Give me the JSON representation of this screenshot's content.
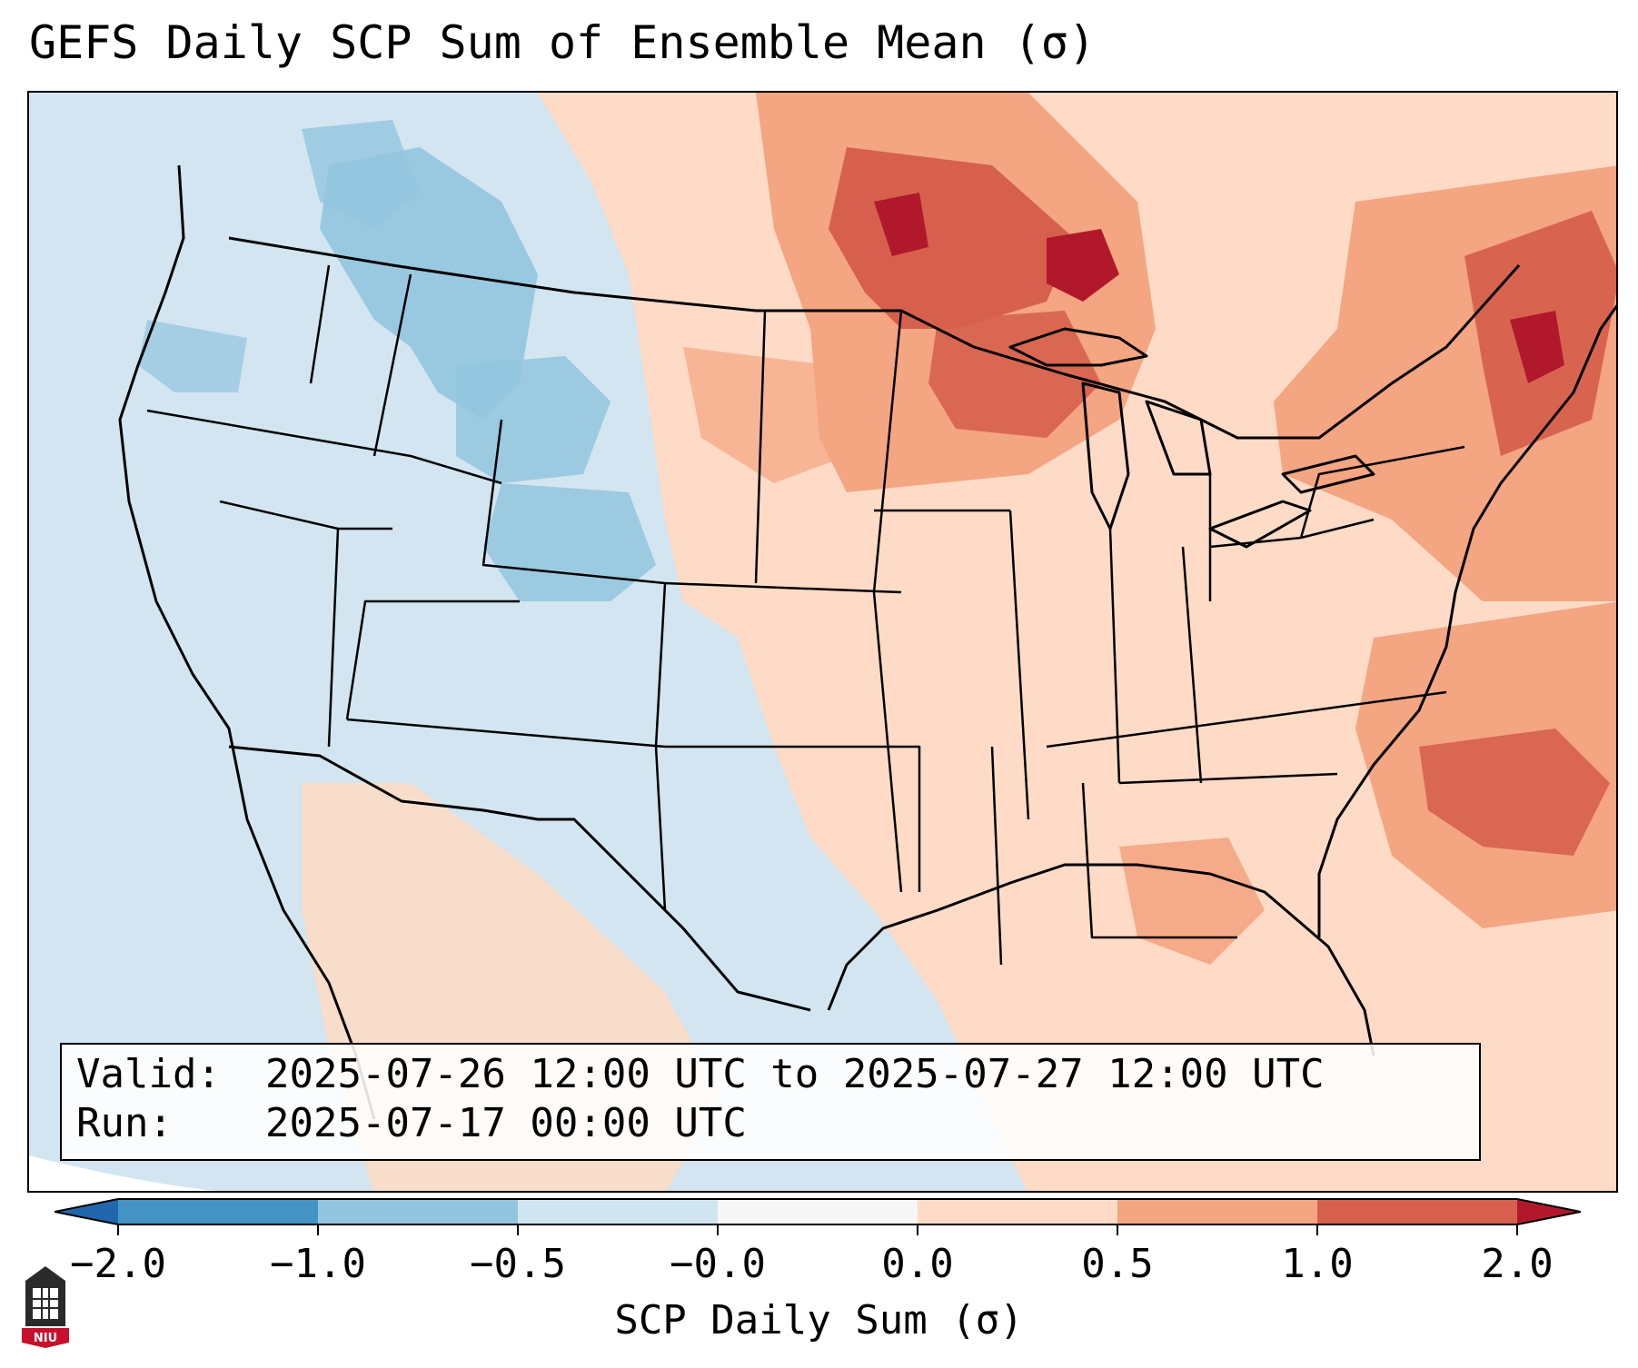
{
  "title": "GEFS Daily SCP Sum of Ensemble Mean (σ)",
  "info": {
    "valid_label": "Valid:",
    "valid_value": "2025-07-26 12:00 UTC to 2025-07-27 12:00 UTC",
    "run_label": "Run:",
    "run_value": "2025-07-17 00:00 UTC"
  },
  "colorbar": {
    "label": "SCP Daily Sum (σ)",
    "ticks": [
      "−2.0",
      "−1.0",
      "−0.5",
      "−0.0",
      "0.0",
      "0.5",
      "1.0",
      "2.0"
    ],
    "colors": [
      "#4393c3",
      "#92c5de",
      "#d1e5f0",
      "#f7f7f7",
      "#fddbc7",
      "#f4a582",
      "#d6604d"
    ],
    "under_color": "#2166ac",
    "over_color": "#b2182b"
  },
  "map": {
    "region": "Contiguous United States",
    "background_color": "#d1e5f0"
  },
  "logo": {
    "text": "NIU"
  }
}
